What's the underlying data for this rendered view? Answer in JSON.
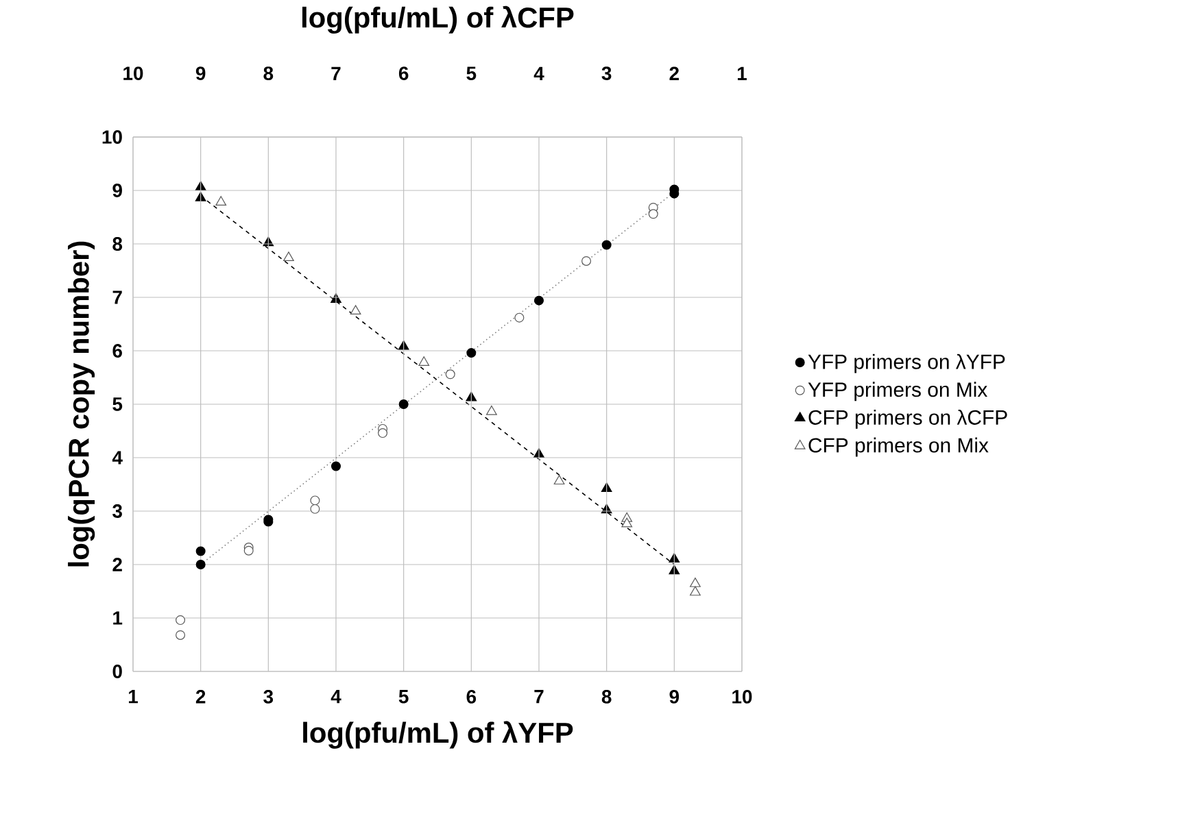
{
  "chart_data": {
    "type": "scatter",
    "title": "log(pfu/mL) of  λCFP",
    "xlabel": "log(pfu/mL) of λYFP",
    "ylabel": "log(qPCR copy number)",
    "xlim": [
      1,
      10
    ],
    "xticks": [
      1,
      2,
      3,
      4,
      5,
      6,
      7,
      8,
      9,
      10
    ],
    "x2lim": [
      10,
      1
    ],
    "x2ticks": [
      10,
      9,
      8,
      7,
      6,
      5,
      4,
      3,
      2,
      1
    ],
    "ylim": [
      0,
      10
    ],
    "yticks": [
      0,
      1,
      2,
      3,
      4,
      5,
      6,
      7,
      8,
      9,
      10
    ],
    "grid": true,
    "legend": "right",
    "series": [
      {
        "name": "YFP primers on λYFP",
        "marker": "circle",
        "color": "#000000",
        "x": [
          2,
          2,
          3,
          3,
          4,
          5,
          6,
          7,
          8,
          9,
          9
        ],
        "values": [
          2.25,
          2.0,
          2.84,
          2.8,
          3.84,
          5.0,
          5.96,
          6.94,
          7.98,
          9.02,
          8.94
        ]
      },
      {
        "name": "YFP primers on Mix",
        "marker": "circle",
        "color": "#595959",
        "x": [
          1.7,
          1.7,
          2.71,
          2.71,
          3.69,
          3.69,
          4.69,
          4.69,
          5.69,
          6.71,
          7.7,
          8.69,
          8.69
        ],
        "values": [
          0.96,
          0.68,
          2.32,
          2.26,
          3.2,
          3.04,
          4.54,
          4.46,
          5.56,
          6.62,
          7.68,
          8.68,
          8.56
        ]
      },
      {
        "name": "CFP primers on λCFP",
        "marker": "triangle",
        "color": "#000000",
        "axis": "x2",
        "x": [
          9,
          9,
          8,
          7,
          6,
          5,
          4,
          3,
          3,
          2,
          2
        ],
        "values": [
          9.06,
          8.86,
          8.02,
          6.96,
          6.08,
          5.12,
          4.06,
          3.42,
          3.02,
          2.1,
          1.88
        ]
      },
      {
        "name": "CFP primers  on Mix",
        "marker": "triangle",
        "color": "#595959",
        "axis": "x2",
        "x": [
          8.7,
          7.7,
          6.71,
          5.7,
          4.7,
          3.7,
          2.7,
          2.7,
          1.69,
          1.69
        ],
        "values": [
          8.78,
          7.74,
          6.74,
          5.78,
          4.86,
          3.56,
          2.86,
          2.76,
          1.64,
          1.48
        ]
      },
      {
        "type": "line",
        "line_style": "dotted",
        "color": "#808080",
        "x": [
          2,
          9
        ],
        "values": [
          2.0,
          8.97
        ]
      },
      {
        "type": "line",
        "line_style": "dashed",
        "color": "#000000",
        "axis": "x2",
        "x": [
          9,
          2
        ],
        "values": [
          8.9,
          2.0
        ]
      }
    ]
  }
}
